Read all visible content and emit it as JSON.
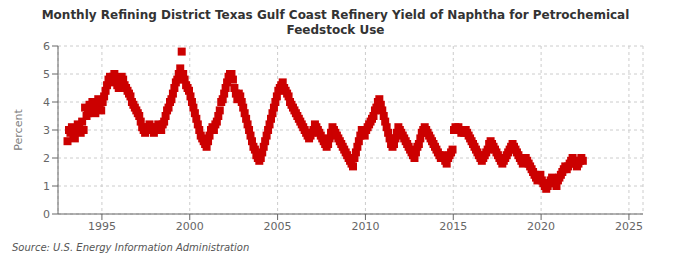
{
  "chart_data": {
    "type": "scatter",
    "title": "Monthly Refining District Texas Gulf Coast Refinery Yield of Naphtha for Petrochemical\nFeedstock Use",
    "ylabel": "Percent",
    "annotations": [
      "Source: U.S. Energy Information Administration"
    ],
    "color": "#cc0000",
    "marker": "square",
    "grid": true,
    "xlim": [
      1992.5,
      2025.8
    ],
    "ylim": [
      0,
      6
    ],
    "xticks": [
      1995,
      2000,
      2005,
      2010,
      2015,
      2020,
      2025
    ],
    "yticks": [
      0,
      1,
      2,
      3,
      4,
      5,
      6
    ],
    "x": [
      1993.0416666666667,
      1993.125,
      1993.2083333333333,
      1993.2916666666667,
      1993.375,
      1993.4583333333333,
      1993.5416666666667,
      1993.625,
      1993.7083333333333,
      1993.7916666666667,
      1993.875,
      1993.9583333333333,
      1994.0416666666667,
      1994.125,
      1994.2083333333333,
      1994.2916666666667,
      1994.375,
      1994.4583333333333,
      1994.5416666666667,
      1994.625,
      1994.7083333333333,
      1994.7916666666667,
      1994.875,
      1994.9583333333333,
      1995.0416666666667,
      1995.125,
      1995.2083333333333,
      1995.2916666666667,
      1995.375,
      1995.4583333333333,
      1995.5416666666667,
      1995.625,
      1995.7083333333333,
      1995.7916666666667,
      1995.875,
      1995.9583333333333,
      1996.0416666666667,
      1996.125,
      1996.2083333333333,
      1996.2916666666667,
      1996.375,
      1996.4583333333333,
      1996.5416666666667,
      1996.625,
      1996.7083333333333,
      1996.7916666666667,
      1996.875,
      1996.9583333333333,
      1997.0416666666667,
      1997.125,
      1997.2083333333333,
      1997.2916666666667,
      1997.375,
      1997.4583333333333,
      1997.5416666666667,
      1997.625,
      1997.7083333333333,
      1997.7916666666667,
      1997.875,
      1997.9583333333333,
      1998.0416666666667,
      1998.125,
      1998.2083333333333,
      1998.2916666666667,
      1998.375,
      1998.4583333333333,
      1998.5416666666667,
      1998.625,
      1998.7083333333333,
      1998.7916666666667,
      1998.875,
      1998.9583333333333,
      1999.0416666666667,
      1999.125,
      1999.2083333333333,
      1999.2916666666667,
      1999.375,
      1999.4583333333333,
      1999.5416666666667,
      1999.625,
      1999.7083333333333,
      1999.7916666666667,
      1999.875,
      1999.9583333333333,
      2000.0416666666667,
      2000.125,
      2000.2083333333333,
      2000.2916666666667,
      2000.375,
      2000.4583333333333,
      2000.5416666666667,
      2000.625,
      2000.7083333333333,
      2000.7916666666667,
      2000.875,
      2000.9583333333333,
      2001.0416666666667,
      2001.125,
      2001.2083333333333,
      2001.2916666666667,
      2001.375,
      2001.4583333333333,
      2001.5416666666667,
      2001.625,
      2001.7083333333333,
      2001.7916666666667,
      2001.875,
      2001.9583333333333,
      2002.0416666666667,
      2002.125,
      2002.2083333333333,
      2002.2916666666667,
      2002.375,
      2002.4583333333333,
      2002.5416666666667,
      2002.625,
      2002.7083333333333,
      2002.7916666666667,
      2002.875,
      2002.9583333333333,
      2003.0416666666667,
      2003.125,
      2003.2083333333333,
      2003.2916666666667,
      2003.375,
      2003.4583333333333,
      2003.5416666666667,
      2003.625,
      2003.7083333333333,
      2003.7916666666667,
      2003.875,
      2003.9583333333333,
      2004.0416666666667,
      2004.125,
      2004.2083333333333,
      2004.2916666666667,
      2004.375,
      2004.4583333333333,
      2004.5416666666667,
      2004.625,
      2004.7083333333333,
      2004.7916666666667,
      2004.875,
      2004.9583333333333,
      2005.0416666666667,
      2005.125,
      2005.2083333333333,
      2005.2916666666667,
      2005.375,
      2005.4583333333333,
      2005.5416666666667,
      2005.625,
      2005.7083333333333,
      2005.7916666666667,
      2005.875,
      2005.9583333333333,
      2006.0416666666667,
      2006.125,
      2006.2083333333333,
      2006.2916666666667,
      2006.375,
      2006.4583333333333,
      2006.5416666666667,
      2006.625,
      2006.7083333333333,
      2006.7916666666667,
      2006.875,
      2006.9583333333333,
      2007.0416666666667,
      2007.125,
      2007.2083333333333,
      2007.2916666666667,
      2007.375,
      2007.4583333333333,
      2007.5416666666667,
      2007.625,
      2007.7083333333333,
      2007.7916666666667,
      2007.875,
      2007.9583333333333,
      2008.0416666666667,
      2008.125,
      2008.2083333333333,
      2008.2916666666667,
      2008.375,
      2008.4583333333333,
      2008.5416666666667,
      2008.625,
      2008.7083333333333,
      2008.7916666666667,
      2008.875,
      2008.9583333333333,
      2009.0416666666667,
      2009.125,
      2009.2083333333333,
      2009.2916666666667,
      2009.375,
      2009.4583333333333,
      2009.5416666666667,
      2009.625,
      2009.7083333333333,
      2009.7916666666667,
      2009.875,
      2009.9583333333333,
      2010.0416666666667,
      2010.125,
      2010.2083333333333,
      2010.2916666666667,
      2010.375,
      2010.4583333333333,
      2010.5416666666667,
      2010.625,
      2010.7083333333333,
      2010.7916666666667,
      2010.875,
      2010.9583333333333,
      2011.0416666666667,
      2011.125,
      2011.2083333333333,
      2011.2916666666667,
      2011.375,
      2011.4583333333333,
      2011.5416666666667,
      2011.625,
      2011.7083333333333,
      2011.7916666666667,
      2011.875,
      2011.9583333333333,
      2012.0416666666667,
      2012.125,
      2012.2083333333333,
      2012.2916666666667,
      2012.375,
      2012.4583333333333,
      2012.5416666666667,
      2012.625,
      2012.7083333333333,
      2012.7916666666667,
      2012.875,
      2012.9583333333333,
      2013.0416666666667,
      2013.125,
      2013.2083333333333,
      2013.2916666666667,
      2013.375,
      2013.4583333333333,
      2013.5416666666667,
      2013.625,
      2013.7083333333333,
      2013.7916666666667,
      2013.875,
      2013.9583333333333,
      2014.0416666666667,
      2014.125,
      2014.2083333333333,
      2014.2916666666667,
      2014.375,
      2014.4583333333333,
      2014.5416666666667,
      2014.625,
      2014.7083333333333,
      2014.7916666666667,
      2014.875,
      2014.9583333333333,
      2015.0416666666667,
      2015.125,
      2015.2083333333333,
      2015.2916666666667,
      2015.375,
      2015.4583333333333,
      2015.5416666666667,
      2015.625,
      2015.7083333333333,
      2015.7916666666667,
      2015.875,
      2015.9583333333333,
      2016.0416666666667,
      2016.125,
      2016.2083333333333,
      2016.2916666666667,
      2016.375,
      2016.4583333333333,
      2016.5416666666667,
      2016.625,
      2016.7083333333333,
      2016.7916666666667,
      2016.875,
      2016.9583333333333,
      2017.0416666666667,
      2017.125,
      2017.2083333333333,
      2017.2916666666667,
      2017.375,
      2017.4583333333333,
      2017.5416666666667,
      2017.625,
      2017.7083333333333,
      2017.7916666666667,
      2017.875,
      2017.9583333333333,
      2018.0416666666667,
      2018.125,
      2018.2083333333333,
      2018.2916666666667,
      2018.375,
      2018.4583333333333,
      2018.5416666666667,
      2018.625,
      2018.7083333333333,
      2018.7916666666667,
      2018.875,
      2018.9583333333333,
      2019.0416666666667,
      2019.125,
      2019.2083333333333,
      2019.2916666666667,
      2019.375,
      2019.4583333333333,
      2019.5416666666667,
      2019.625,
      2019.7083333333333,
      2019.7916666666667,
      2019.875,
      2019.9583333333333,
      2020.0416666666667,
      2020.125,
      2020.2083333333333,
      2020.2916666666667,
      2020.375,
      2020.4583333333333,
      2020.5416666666667,
      2020.625,
      2020.7083333333333,
      2020.7916666666667,
      2020.875,
      2020.9583333333333,
      2021.0416666666667,
      2021.125,
      2021.2083333333333,
      2021.2916666666667,
      2021.375,
      2021.4583333333333,
      2021.5416666666667,
      2021.625,
      2021.7083333333333,
      2021.7916666666667,
      2021.875,
      2021.9583333333333,
      2022.0416666666667,
      2022.125,
      2022.2083333333333,
      2022.2916666666667,
      2022.375
    ],
    "values": [
      2.6,
      3.0,
      2.9,
      3.1,
      2.8,
      2.7,
      3.0,
      3.2,
      3.1,
      2.9,
      3.3,
      3.0,
      3.8,
      3.5,
      3.6,
      3.9,
      3.7,
      4.0,
      3.8,
      3.6,
      3.9,
      4.1,
      3.8,
      3.7,
      4.0,
      4.2,
      4.4,
      4.6,
      4.8,
      4.9,
      4.7,
      4.9,
      5.0,
      4.8,
      4.6,
      4.5,
      4.7,
      4.9,
      4.8,
      4.6,
      4.5,
      4.4,
      4.3,
      4.2,
      4.0,
      3.9,
      3.8,
      3.7,
      3.6,
      3.5,
      3.3,
      3.1,
      3.0,
      2.9,
      3.0,
      3.1,
      3.2,
      3.1,
      3.0,
      2.9,
      3.0,
      3.1,
      3.2,
      3.1,
      3.0,
      3.2,
      3.3,
      3.5,
      3.7,
      3.8,
      4.0,
      4.1,
      4.3,
      4.5,
      4.7,
      4.8,
      5.0,
      5.2,
      5.8,
      5.0,
      4.8,
      4.6,
      4.5,
      4.4,
      4.2,
      4.0,
      3.8,
      3.6,
      3.4,
      3.2,
      3.0,
      2.8,
      2.7,
      2.6,
      2.5,
      2.4,
      2.6,
      2.8,
      3.0,
      3.1,
      3.0,
      3.2,
      3.3,
      3.5,
      3.7,
      4.0,
      4.1,
      4.3,
      4.5,
      4.7,
      4.9,
      5.0,
      5.0,
      4.8,
      4.5,
      4.3,
      4.1,
      4.3,
      4.2,
      4.0,
      3.8,
      3.6,
      3.4,
      3.2,
      3.0,
      2.8,
      2.6,
      2.4,
      2.3,
      2.1,
      2.0,
      1.9,
      2.0,
      2.2,
      2.4,
      2.6,
      2.8,
      3.0,
      3.2,
      3.4,
      3.6,
      3.8,
      4.0,
      4.2,
      4.4,
      4.5,
      4.6,
      4.7,
      4.5,
      4.4,
      4.3,
      4.2,
      4.0,
      3.9,
      3.8,
      3.7,
      3.6,
      3.5,
      3.4,
      3.3,
      3.2,
      3.1,
      3.0,
      2.9,
      2.8,
      2.7,
      2.8,
      2.9,
      3.0,
      3.2,
      3.1,
      3.0,
      2.9,
      2.8,
      2.7,
      2.6,
      2.5,
      2.4,
      2.5,
      2.7,
      2.9,
      3.1,
      3.0,
      2.9,
      2.8,
      2.7,
      2.6,
      2.5,
      2.4,
      2.3,
      2.2,
      2.1,
      2.0,
      1.9,
      1.8,
      1.7,
      2.0,
      2.2,
      2.4,
      2.6,
      2.8,
      3.0,
      2.9,
      2.8,
      3.0,
      3.1,
      3.2,
      3.3,
      3.4,
      3.5,
      3.7,
      3.8,
      4.0,
      4.1,
      3.9,
      3.7,
      3.5,
      3.3,
      3.1,
      2.9,
      2.7,
      2.5,
      2.4,
      2.5,
      2.7,
      2.9,
      3.1,
      3.0,
      2.9,
      2.8,
      2.7,
      2.6,
      2.5,
      2.4,
      2.3,
      2.2,
      2.1,
      2.0,
      2.2,
      2.4,
      2.5,
      2.7,
      2.9,
      3.0,
      3.1,
      3.0,
      2.9,
      2.8,
      2.7,
      2.6,
      2.5,
      2.4,
      2.3,
      2.2,
      2.1,
      2.0,
      2.1,
      2.0,
      1.9,
      1.8,
      2.0,
      2.1,
      2.2,
      2.3,
      3.0,
      3.1,
      3.0,
      3.1,
      3.0,
      2.9,
      3.0,
      2.9,
      3.0,
      2.9,
      2.8,
      2.7,
      2.6,
      2.5,
      2.4,
      2.3,
      2.2,
      2.1,
      2.0,
      1.9,
      2.0,
      2.1,
      2.2,
      2.3,
      2.5,
      2.6,
      2.5,
      2.4,
      2.3,
      2.2,
      2.1,
      2.0,
      1.9,
      1.8,
      1.9,
      2.0,
      2.1,
      2.2,
      2.3,
      2.4,
      2.5,
      2.4,
      2.3,
      2.2,
      2.1,
      2.0,
      1.9,
      1.8,
      1.9,
      2.0,
      1.9,
      1.8,
      1.7,
      1.6,
      1.5,
      1.4,
      1.3,
      1.2,
      1.3,
      1.4,
      1.2,
      1.1,
      1.0,
      0.9,
      1.0,
      1.1,
      1.2,
      1.3,
      1.2,
      1.1,
      1.0,
      1.2,
      1.3,
      1.4,
      1.5,
      1.6,
      1.7,
      1.6,
      1.7,
      1.8,
      1.9,
      2.0,
      1.9,
      1.8,
      1.7,
      1.8,
      1.9,
      2.0,
      1.9
    ]
  }
}
